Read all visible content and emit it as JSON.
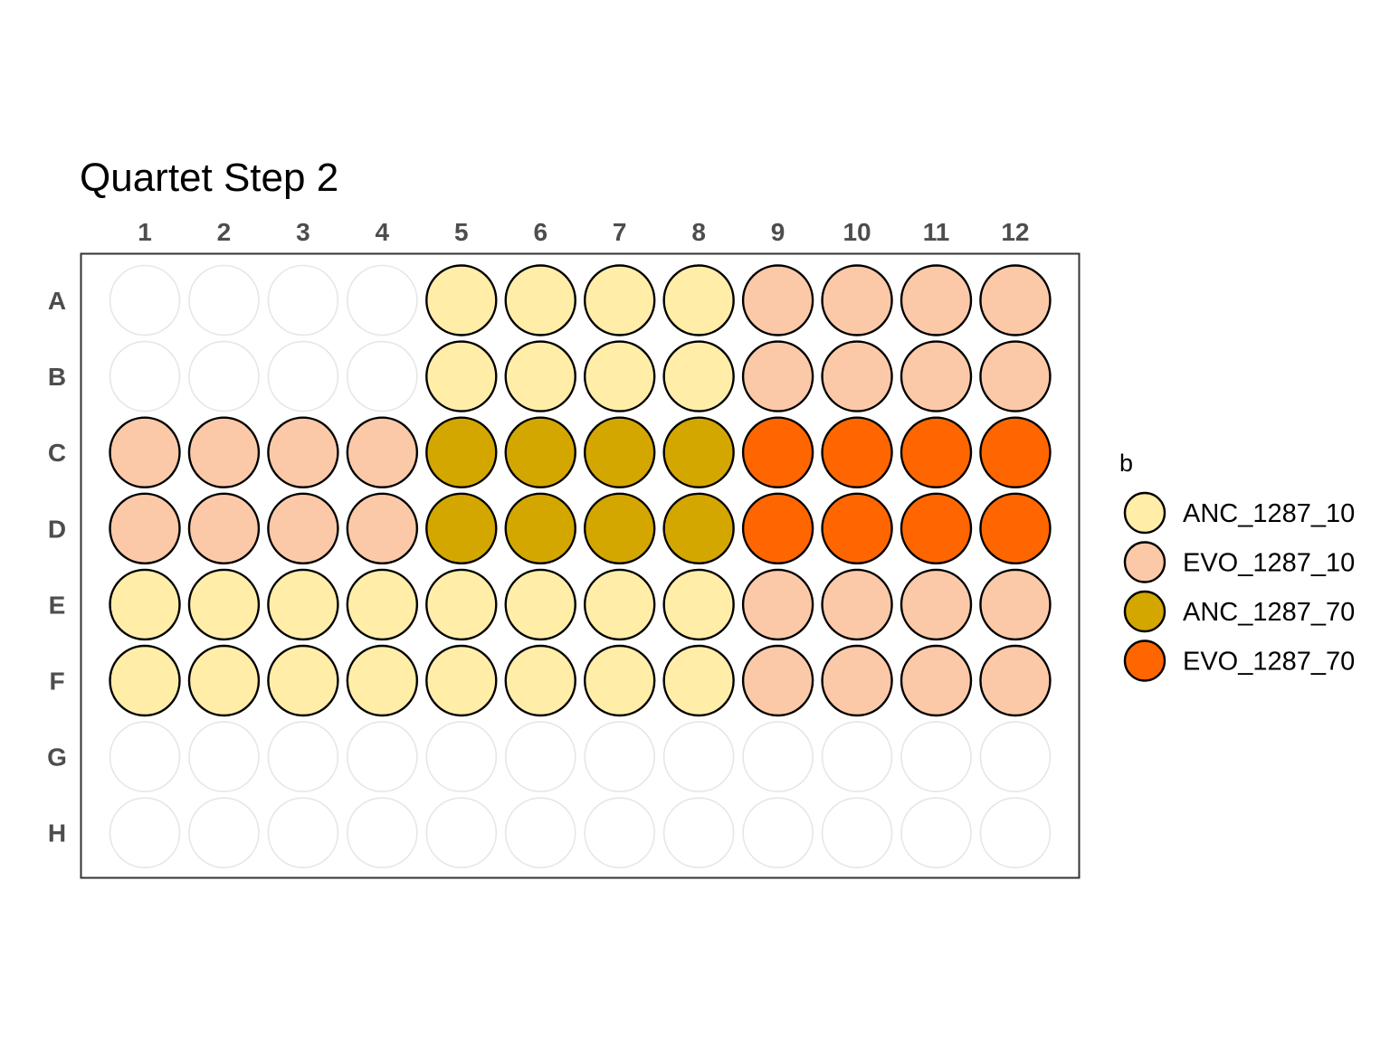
{
  "chart_data": {
    "type": "heatmap",
    "title": "Quartet Step 2",
    "columns": [
      "1",
      "2",
      "3",
      "4",
      "5",
      "6",
      "7",
      "8",
      "9",
      "10",
      "11",
      "12"
    ],
    "rows": [
      "A",
      "B",
      "C",
      "D",
      "E",
      "F",
      "G",
      "H"
    ],
    "legend": {
      "title": "b",
      "placement": "right",
      "entries": [
        {
          "label": "ANC_1287_10",
          "color": "#FFEDA8"
        },
        {
          "label": "EVO_1287_10",
          "color": "#FCC9A8"
        },
        {
          "label": "ANC_1287_70",
          "color": "#D4A700"
        },
        {
          "label": "EVO_1287_70",
          "color": "#FF6600"
        }
      ]
    },
    "empty_well_stroke": "#E6E6E6",
    "filled_well_stroke": "#000000",
    "wells": [
      [
        null,
        null,
        null,
        null,
        "ANC_1287_10",
        "ANC_1287_10",
        "ANC_1287_10",
        "ANC_1287_10",
        "EVO_1287_10",
        "EVO_1287_10",
        "EVO_1287_10",
        "EVO_1287_10"
      ],
      [
        null,
        null,
        null,
        null,
        "ANC_1287_10",
        "ANC_1287_10",
        "ANC_1287_10",
        "ANC_1287_10",
        "EVO_1287_10",
        "EVO_1287_10",
        "EVO_1287_10",
        "EVO_1287_10"
      ],
      [
        "EVO_1287_10",
        "EVO_1287_10",
        "EVO_1287_10",
        "EVO_1287_10",
        "ANC_1287_70",
        "ANC_1287_70",
        "ANC_1287_70",
        "ANC_1287_70",
        "EVO_1287_70",
        "EVO_1287_70",
        "EVO_1287_70",
        "EVO_1287_70"
      ],
      [
        "EVO_1287_10",
        "EVO_1287_10",
        "EVO_1287_10",
        "EVO_1287_10",
        "ANC_1287_70",
        "ANC_1287_70",
        "ANC_1287_70",
        "ANC_1287_70",
        "EVO_1287_70",
        "EVO_1287_70",
        "EVO_1287_70",
        "EVO_1287_70"
      ],
      [
        "ANC_1287_10",
        "ANC_1287_10",
        "ANC_1287_10",
        "ANC_1287_10",
        "ANC_1287_10",
        "ANC_1287_10",
        "ANC_1287_10",
        "ANC_1287_10",
        "EVO_1287_10",
        "EVO_1287_10",
        "EVO_1287_10",
        "EVO_1287_10"
      ],
      [
        "ANC_1287_10",
        "ANC_1287_10",
        "ANC_1287_10",
        "ANC_1287_10",
        "ANC_1287_10",
        "ANC_1287_10",
        "ANC_1287_10",
        "ANC_1287_10",
        "EVO_1287_10",
        "EVO_1287_10",
        "EVO_1287_10",
        "EVO_1287_10"
      ],
      [
        null,
        null,
        null,
        null,
        null,
        null,
        null,
        null,
        null,
        null,
        null,
        null
      ],
      [
        null,
        null,
        null,
        null,
        null,
        null,
        null,
        null,
        null,
        null,
        null,
        null
      ]
    ]
  }
}
